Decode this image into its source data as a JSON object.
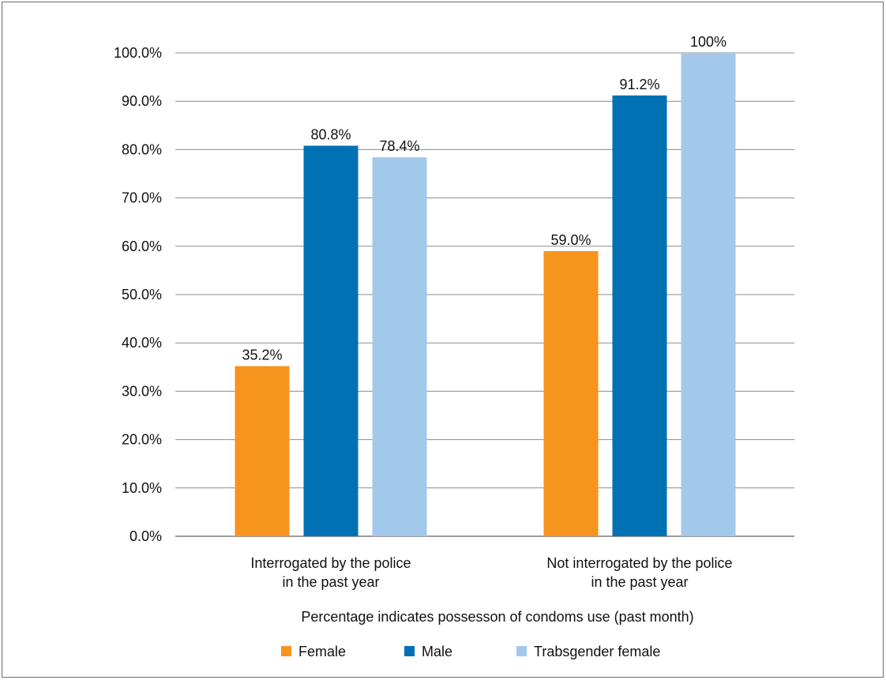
{
  "chart_data": {
    "type": "bar",
    "categories": [
      [
        "Interrogated by the police",
        "in the past year"
      ],
      [
        "Not interrogated by the police",
        "in the past year"
      ]
    ],
    "series": [
      {
        "name": "Female",
        "color": "#F7941D",
        "values": [
          35.2,
          59.0
        ],
        "labels": [
          "35.2%",
          "59.0%"
        ]
      },
      {
        "name": "Male",
        "color": "#0071B2",
        "values": [
          80.8,
          91.2
        ],
        "labels": [
          "80.8%",
          "91.2%"
        ]
      },
      {
        "name": "Trabsgender female",
        "color": "#A2C9EB",
        "values": [
          78.4,
          100
        ],
        "labels": [
          "78.4%",
          "100%"
        ]
      }
    ],
    "ylim": [
      0,
      100
    ],
    "yticks": [
      0,
      10,
      20,
      30,
      40,
      50,
      60,
      70,
      80,
      90,
      100
    ],
    "ytick_labels": [
      "0.0%",
      "10.0%",
      "20.0%",
      "30.0%",
      "40.0%",
      "50.0%",
      "60.0%",
      "70.0%",
      "80.0%",
      "90.0%",
      "100.0%"
    ],
    "xlabel": "Percentage indicates possesson of condoms use (past month)",
    "ylabel": "",
    "title": "",
    "grid": true,
    "legend_position": "bottom"
  }
}
